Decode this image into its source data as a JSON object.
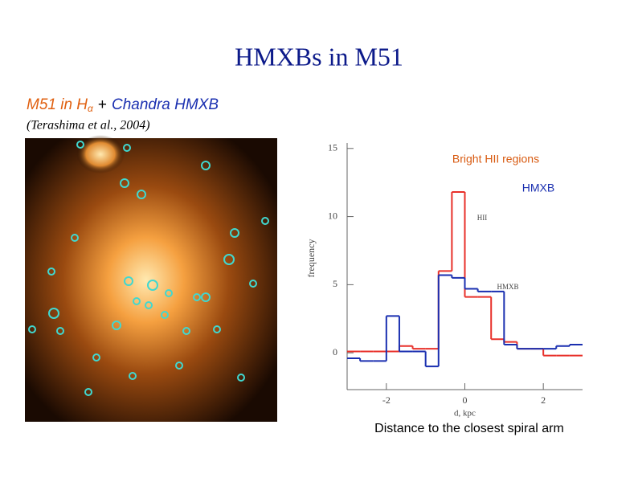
{
  "title": "HMXBs in M51",
  "subtitle": {
    "lead": "M51 in H",
    "subscript": "α",
    "plus": "+",
    "tail": "Chandra HMXB"
  },
  "citation": "(Terashima et al., 2004)",
  "caption": "Distance to the closest spiral arm",
  "chart_data": {
    "type": "histogram",
    "x_label": "d, kpc",
    "y_label": "frequency",
    "bins": [
      -3,
      -2.67,
      -2.33,
      -2,
      -1.67,
      -1.33,
      -1,
      -0.67,
      -0.33,
      0,
      0.33,
      0.67,
      1,
      1.33,
      1.67,
      2,
      2.33,
      2.67,
      3
    ],
    "series": [
      {
        "name": "Bright HII regions",
        "color": "#e8302a",
        "values": [
          0.1,
          0.1,
          0.1,
          0.1,
          0.5,
          0.3,
          0.3,
          6.0,
          11.8,
          4.1,
          4.1,
          1.0,
          0.8,
          0.3,
          0.3,
          -0.2,
          -0.2,
          -0.2
        ]
      },
      {
        "name": "HMXB",
        "color": "#1a2fb0",
        "values": [
          -0.4,
          -0.6,
          -0.6,
          2.7,
          0.1,
          0.1,
          -1.0,
          5.7,
          5.5,
          4.7,
          4.5,
          4.5,
          0.6,
          0.3,
          0.3,
          0.3,
          0.5,
          0.6
        ]
      }
    ],
    "annotations": [
      "HII",
      "HMXB"
    ],
    "xlim": [
      -3,
      3
    ],
    "ylim": [
      -2.7,
      15.4
    ],
    "xticks": [
      -2,
      0,
      2
    ],
    "yticks": [
      0,
      5,
      10,
      15
    ]
  }
}
